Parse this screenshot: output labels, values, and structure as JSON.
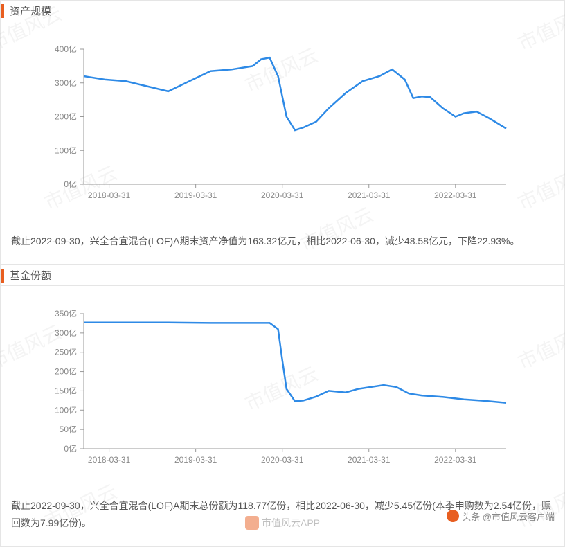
{
  "chart1": {
    "title": "资产规模",
    "type": "line",
    "yaxis": {
      "ticks": [
        0,
        100,
        200,
        300,
        400
      ],
      "labels": [
        "0亿",
        "100亿",
        "200亿",
        "300亿",
        "400亿"
      ],
      "min": 0,
      "max": 400
    },
    "xaxis": {
      "labels": [
        "2018-03-31",
        "2019-03-31",
        "2020-03-31",
        "2021-03-31",
        "2022-03-31"
      ]
    },
    "line_color": "#2e8ae6",
    "axis_color": "#999999",
    "label_color": "#888888",
    "label_fontsize": 12,
    "background_color": "#ffffff",
    "data_points": [
      [
        0.0,
        320
      ],
      [
        0.05,
        310
      ],
      [
        0.1,
        305
      ],
      [
        0.15,
        290
      ],
      [
        0.2,
        275
      ],
      [
        0.25,
        305
      ],
      [
        0.3,
        335
      ],
      [
        0.35,
        340
      ],
      [
        0.4,
        350
      ],
      [
        0.42,
        370
      ],
      [
        0.44,
        375
      ],
      [
        0.46,
        320
      ],
      [
        0.48,
        200
      ],
      [
        0.5,
        160
      ],
      [
        0.52,
        168
      ],
      [
        0.55,
        185
      ],
      [
        0.58,
        225
      ],
      [
        0.62,
        270
      ],
      [
        0.66,
        305
      ],
      [
        0.7,
        320
      ],
      [
        0.73,
        340
      ],
      [
        0.76,
        310
      ],
      [
        0.78,
        255
      ],
      [
        0.8,
        260
      ],
      [
        0.82,
        258
      ],
      [
        0.85,
        225
      ],
      [
        0.88,
        200
      ],
      [
        0.9,
        210
      ],
      [
        0.93,
        215
      ],
      [
        0.96,
        195
      ],
      [
        1.0,
        165
      ]
    ],
    "description": "截止2022-09-30，兴全合宜混合(LOF)A期末资产净值为163.32亿元，相比2022-06-30，减少48.58亿元，下降22.93%。"
  },
  "chart2": {
    "title": "基金份额",
    "type": "line",
    "yaxis": {
      "ticks": [
        0,
        50,
        100,
        150,
        200,
        250,
        300,
        350
      ],
      "labels": [
        "0亿",
        "50亿",
        "100亿",
        "150亿",
        "200亿",
        "250亿",
        "300亿",
        "350亿"
      ],
      "min": 0,
      "max": 350
    },
    "xaxis": {
      "labels": [
        "2018-03-31",
        "2019-03-31",
        "2020-03-31",
        "2021-03-31",
        "2022-03-31"
      ]
    },
    "line_color": "#2e8ae6",
    "axis_color": "#999999",
    "label_color": "#888888",
    "label_fontsize": 12,
    "background_color": "#ffffff",
    "data_points": [
      [
        0.0,
        327
      ],
      [
        0.1,
        327
      ],
      [
        0.2,
        327
      ],
      [
        0.3,
        326
      ],
      [
        0.4,
        326
      ],
      [
        0.44,
        326
      ],
      [
        0.46,
        310
      ],
      [
        0.47,
        230
      ],
      [
        0.48,
        155
      ],
      [
        0.5,
        123
      ],
      [
        0.52,
        125
      ],
      [
        0.55,
        135
      ],
      [
        0.58,
        150
      ],
      [
        0.62,
        146
      ],
      [
        0.65,
        155
      ],
      [
        0.68,
        160
      ],
      [
        0.71,
        165
      ],
      [
        0.74,
        160
      ],
      [
        0.77,
        143
      ],
      [
        0.8,
        138
      ],
      [
        0.85,
        134
      ],
      [
        0.9,
        128
      ],
      [
        0.95,
        124
      ],
      [
        1.0,
        119
      ]
    ],
    "description": "截止2022-09-30，兴全合宜混合(LOF)A期末总份额为118.77亿份，相比2022-06-30，减少5.45亿份(本季申购数为2.54亿份，赎回数为7.99亿份)。"
  },
  "watermark_text": "市值风云",
  "attribution": "头条 @市值风云客户端",
  "bottom_watermark": "市值风云APP",
  "colors": {
    "accent": "#e85e20",
    "border": "#e5e5e5",
    "text": "#555555"
  }
}
